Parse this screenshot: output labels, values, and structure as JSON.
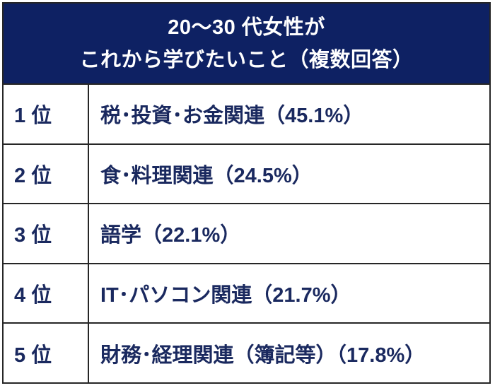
{
  "table": {
    "header": {
      "line1": "20～30 代女性が",
      "line2": "これから学びたいこと（複数回答）"
    },
    "rows": [
      {
        "rank": "1 位",
        "item": "税･投資･お金関連（45.1%）"
      },
      {
        "rank": "2 位",
        "item": "食･料理関連（24.5%）"
      },
      {
        "rank": "3 位",
        "item": "語学（22.1%）"
      },
      {
        "rank": "4 位",
        "item": "IT･パソコン関連（21.7%）"
      },
      {
        "rank": "5 位",
        "item": "財務･経理関連（簿記等）（17.8%）"
      }
    ],
    "colors": {
      "header_bg": "#0e2163",
      "header_text": "#ffffff",
      "row_text": "#1a295f",
      "border": "#262626",
      "row_bg": "#ffffff"
    }
  },
  "chart_data": {
    "type": "table",
    "title": "20～30 代女性が これから学びたいこと（複数回答）",
    "categories": [
      "税･投資･お金関連",
      "食･料理関連",
      "語学",
      "IT･パソコン関連",
      "財務･経理関連（簿記等）"
    ],
    "ranks": [
      1,
      2,
      3,
      4,
      5
    ],
    "values": [
      45.1,
      24.5,
      22.1,
      21.7,
      17.8
    ],
    "unit": "%",
    "note": "複数回答"
  }
}
